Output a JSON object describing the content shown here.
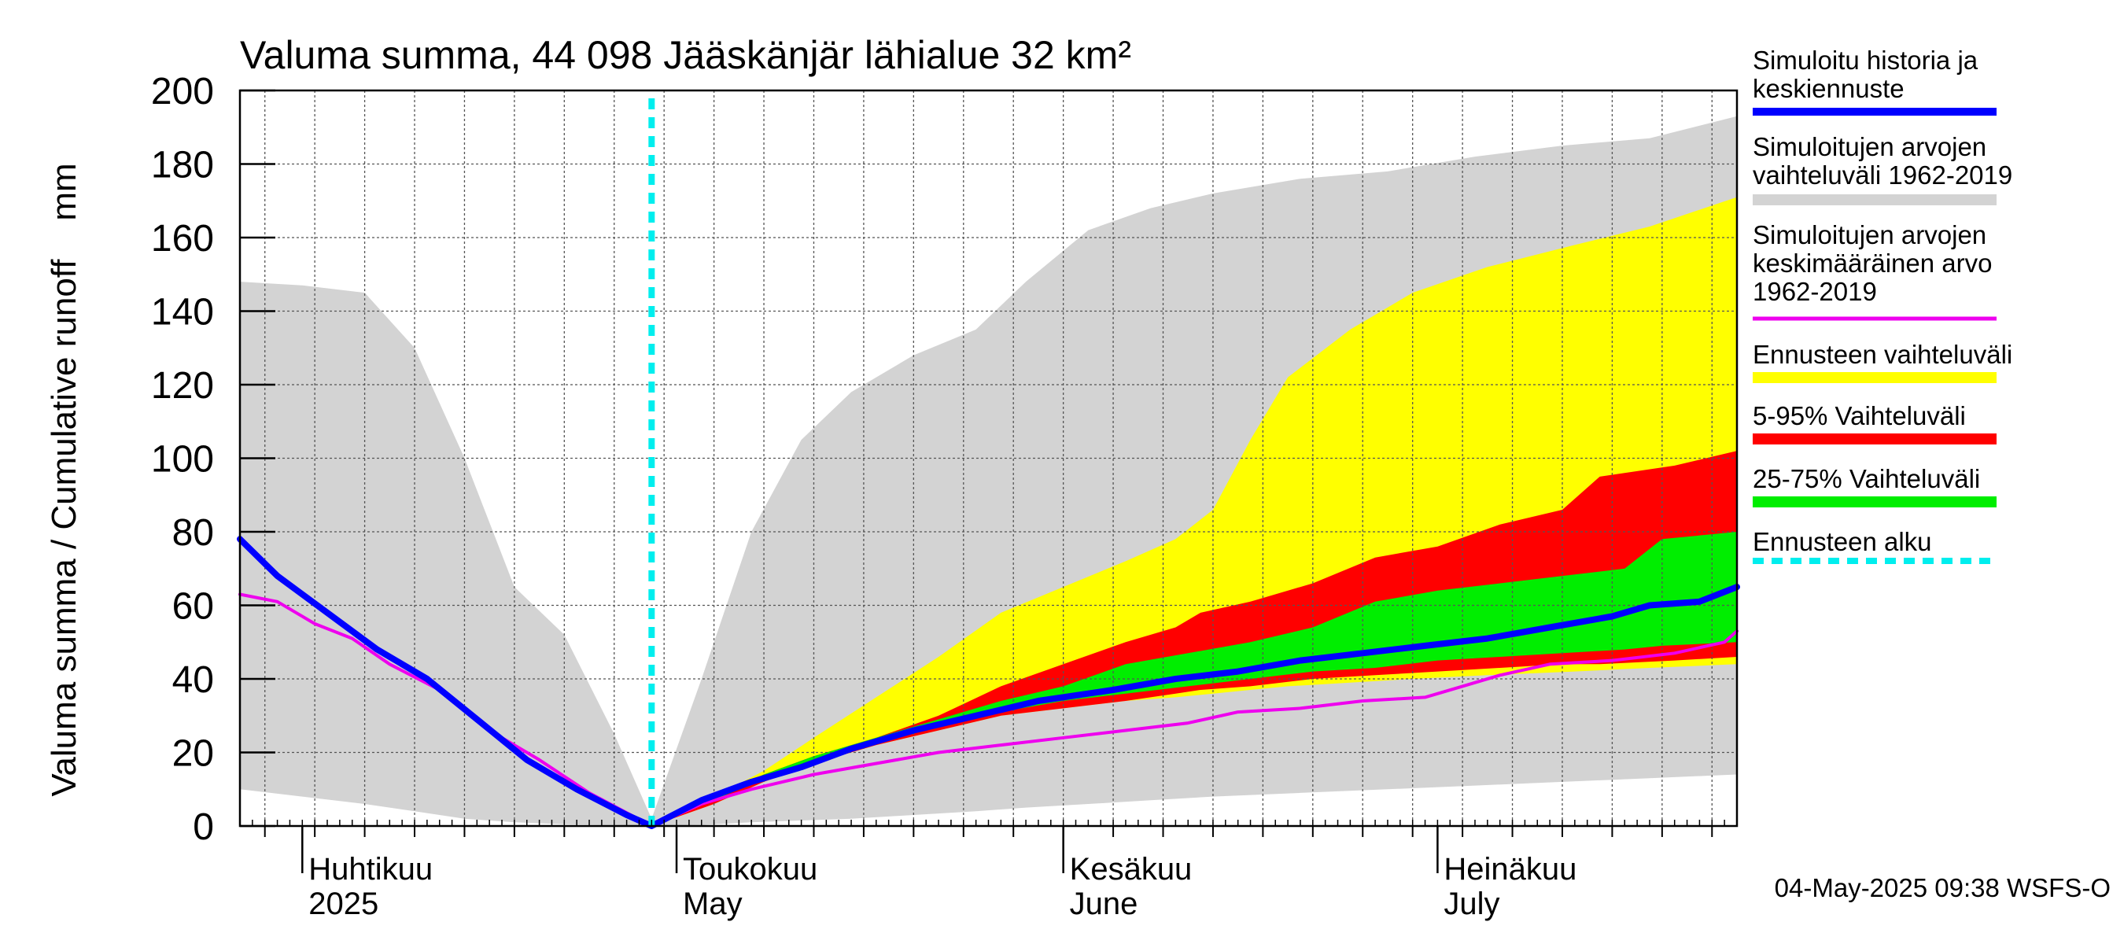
{
  "chart_data": {
    "type": "area",
    "title": "Valuma summa, 44 098 Jääskänjär lähialue 32 km²",
    "ylabel": "Valuma summa / Cumulative runoff    mm",
    "ylim": [
      0,
      200
    ],
    "yticks": [
      0,
      20,
      40,
      60,
      80,
      100,
      120,
      140,
      160,
      180,
      200
    ],
    "xlim": [
      "2025-03-27",
      "2025-07-25"
    ],
    "month_ticks": [
      {
        "date": "2025-04-01",
        "label1": "Huhtikuu",
        "label2": "2025"
      },
      {
        "date": "2025-05-01",
        "label1": "Toukokuu",
        "label2": "May"
      },
      {
        "date": "2025-06-01",
        "label1": "Kesäkuu",
        "label2": "June"
      },
      {
        "date": "2025-07-01",
        "label1": "Heinäkuu",
        "label2": "July"
      }
    ],
    "forecast_start": "2025-04-29",
    "grid": true,
    "legend_position": "right",
    "footer": "04-May-2025 09:38 WSFS-O",
    "colors": {
      "sim_range": "#d3d3d3",
      "forecast_range": "#ffff00",
      "p5_95": "#ff0000",
      "p25_75": "#00ee00",
      "history": "#0000ff",
      "mean": "#ee00ee",
      "forecast_start": "#00eeee"
    },
    "legend": [
      {
        "key": "history",
        "lines": [
          "Simuloitu historia ja",
          "keskiennuste"
        ],
        "style": "line"
      },
      {
        "key": "sim_range",
        "lines": [
          "Simuloitujen arvojen",
          "vaihteluväli 1962-2019"
        ],
        "style": "band"
      },
      {
        "key": "mean",
        "lines": [
          "Simuloitujen arvojen",
          "keskimääräinen arvo",
          "   1962-2019"
        ],
        "style": "thin"
      },
      {
        "key": "forecast_range",
        "lines": [
          "Ennusteen vaihteluväli"
        ],
        "style": "band"
      },
      {
        "key": "p5_95",
        "lines": [
          "5-95% Vaihteluväli"
        ],
        "style": "band"
      },
      {
        "key": "p25_75",
        "lines": [
          "25-75% Vaihteluväli"
        ],
        "style": "band"
      },
      {
        "key": "forecast_start",
        "lines": [
          "Ennusteen alku"
        ],
        "style": "dashed"
      }
    ],
    "series": [
      {
        "key": "sim_range",
        "x": [
          "2025-03-27",
          "2025-04-01",
          "2025-04-06",
          "2025-04-10",
          "2025-04-14",
          "2025-04-18",
          "2025-04-22",
          "2025-04-26",
          "2025-04-29",
          "2025-05-03",
          "2025-05-07",
          "2025-05-11",
          "2025-05-15",
          "2025-05-20",
          "2025-05-25",
          "2025-05-29",
          "2025-06-03",
          "2025-06-08",
          "2025-06-13",
          "2025-06-20",
          "2025-06-27",
          "2025-07-04",
          "2025-07-11",
          "2025-07-18",
          "2025-07-25"
        ],
        "upper": [
          148,
          147,
          145,
          130,
          100,
          65,
          52,
          25,
          2,
          40,
          80,
          105,
          118,
          128,
          135,
          148,
          162,
          168,
          172,
          176,
          178,
          182,
          185,
          187,
          193
        ],
        "lower": [
          10,
          8,
          6,
          4,
          2,
          1,
          0.5,
          0.3,
          0,
          0.3,
          1,
          1.5,
          2,
          3,
          4,
          5,
          6,
          7,
          8,
          9,
          10,
          11,
          12,
          13,
          14
        ]
      },
      {
        "key": "forecast_range",
        "x": [
          "2025-04-29",
          "2025-05-04",
          "2025-05-08",
          "2025-05-12",
          "2025-05-17",
          "2025-05-22",
          "2025-05-27",
          "2025-06-01",
          "2025-06-06",
          "2025-06-10",
          "2025-06-13",
          "2025-06-16",
          "2025-06-19",
          "2025-06-24",
          "2025-06-29",
          "2025-07-05",
          "2025-07-12",
          "2025-07-18",
          "2025-07-25"
        ],
        "upper": [
          0,
          8,
          15,
          24,
          35,
          46,
          58,
          65,
          72,
          78,
          86,
          105,
          122,
          135,
          145,
          152,
          158,
          163,
          171
        ],
        "lower": [
          0,
          6,
          12,
          17,
          22,
          26,
          30,
          32,
          34,
          35,
          36,
          37,
          38,
          39,
          40,
          41,
          42,
          43,
          44
        ]
      },
      {
        "key": "p5_95",
        "x": [
          "2025-04-29",
          "2025-05-04",
          "2025-05-08",
          "2025-05-12",
          "2025-05-17",
          "2025-05-22",
          "2025-05-27",
          "2025-06-01",
          "2025-06-06",
          "2025-06-10",
          "2025-06-12",
          "2025-06-16",
          "2025-06-21",
          "2025-06-26",
          "2025-07-01",
          "2025-07-06",
          "2025-07-11",
          "2025-07-14",
          "2025-07-20",
          "2025-07-25"
        ],
        "upper": [
          0,
          8,
          14,
          19,
          24,
          30,
          38,
          44,
          50,
          54,
          58,
          61,
          66,
          73,
          76,
          82,
          86,
          95,
          98,
          102
        ],
        "lower": [
          0,
          6,
          12,
          17,
          22,
          26,
          30,
          32,
          34,
          36,
          37,
          38,
          40,
          41,
          42,
          43,
          44,
          44,
          45,
          46
        ]
      },
      {
        "key": "p25_75",
        "x": [
          "2025-04-29",
          "2025-05-04",
          "2025-05-08",
          "2025-05-12",
          "2025-05-17",
          "2025-05-22",
          "2025-05-27",
          "2025-06-01",
          "2025-06-06",
          "2025-06-11",
          "2025-06-16",
          "2025-06-21",
          "2025-06-26",
          "2025-07-01",
          "2025-07-06",
          "2025-07-11",
          "2025-07-16",
          "2025-07-19",
          "2025-07-25"
        ],
        "upper": [
          0,
          8,
          14,
          19,
          24,
          29,
          34,
          38,
          44,
          47,
          50,
          54,
          61,
          64,
          66,
          68,
          70,
          78,
          80
        ],
        "lower": [
          0,
          7,
          13,
          18,
          23,
          27,
          31,
          34,
          36,
          38,
          40,
          42,
          43,
          45,
          46,
          47,
          48,
          49,
          50
        ]
      },
      {
        "key": "history",
        "x": [
          "2025-03-27",
          "2025-03-30",
          "2025-04-03",
          "2025-04-07",
          "2025-04-11",
          "2025-04-15",
          "2025-04-19",
          "2025-04-23",
          "2025-04-27",
          "2025-04-29",
          "2025-05-03",
          "2025-05-07",
          "2025-05-11",
          "2025-05-15",
          "2025-05-20",
          "2025-05-25",
          "2025-05-30",
          "2025-06-05",
          "2025-06-10",
          "2025-06-15",
          "2025-06-20",
          "2025-06-25",
          "2025-06-30",
          "2025-07-05",
          "2025-07-10",
          "2025-07-15",
          "2025-07-18",
          "2025-07-22",
          "2025-07-25"
        ],
        "values": [
          78,
          68,
          58,
          48,
          40,
          29,
          18,
          10,
          3,
          0,
          7,
          12,
          16,
          21,
          26,
          30,
          34,
          37,
          40,
          42,
          45,
          47,
          49,
          51,
          54,
          57,
          60,
          61,
          65
        ]
      },
      {
        "key": "mean",
        "x": [
          "2025-03-27",
          "2025-03-30",
          "2025-04-02",
          "2025-04-05",
          "2025-04-08",
          "2025-04-12",
          "2025-04-16",
          "2025-04-20",
          "2025-04-24",
          "2025-04-29",
          "2025-05-03",
          "2025-05-07",
          "2025-05-12",
          "2025-05-17",
          "2025-05-22",
          "2025-05-27",
          "2025-06-01",
          "2025-06-06",
          "2025-06-11",
          "2025-06-15",
          "2025-06-20",
          "2025-06-25",
          "2025-06-30",
          "2025-07-03",
          "2025-07-06",
          "2025-07-10",
          "2025-07-15",
          "2025-07-20",
          "2025-07-24",
          "2025-07-25"
        ],
        "values": [
          63,
          61,
          55,
          51,
          44,
          37,
          26,
          18,
          9,
          0,
          6,
          10,
          14,
          17,
          20,
          22,
          24,
          26,
          28,
          31,
          32,
          34,
          35,
          38,
          41,
          44,
          45,
          47,
          50,
          53
        ]
      }
    ]
  }
}
